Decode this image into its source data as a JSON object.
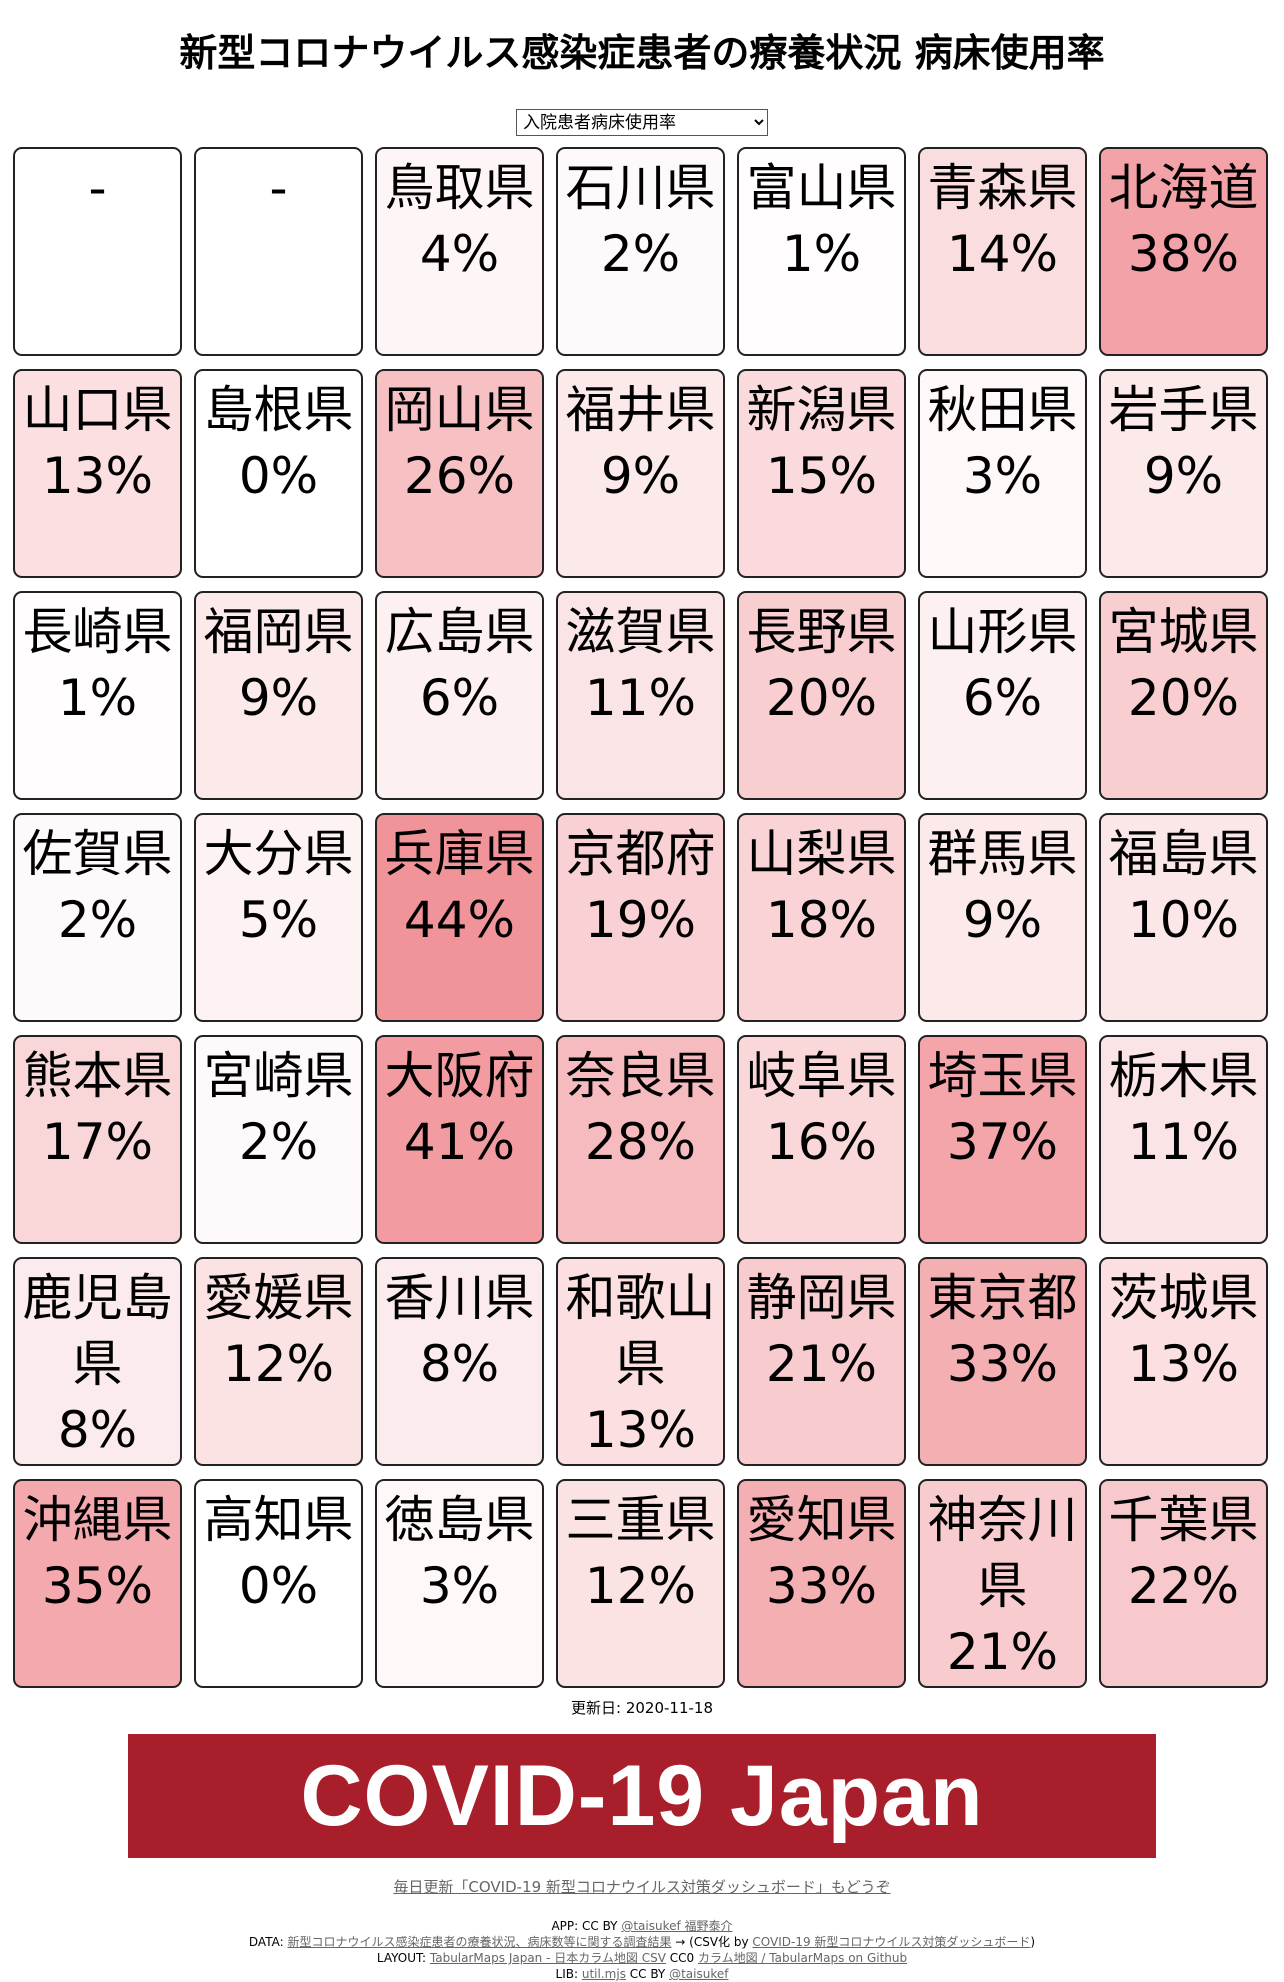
{
  "title": "新型コロナウイルス感染症患者の療養状況 病床使用率",
  "select": {
    "value": "入院患者病床使用率"
  },
  "colors": {
    "border": "#222222",
    "banner_bg": "#a81e2a",
    "banner_text": "#ffffff",
    "heat_base": "#e53c46"
  },
  "grid": [
    {
      "name": "-",
      "value": ""
    },
    {
      "name": "-",
      "value": ""
    },
    {
      "name": "鳥取県",
      "value": "4%",
      "rate": 4
    },
    {
      "name": "石川県",
      "value": "2%",
      "rate": 2
    },
    {
      "name": "富山県",
      "value": "1%",
      "rate": 1
    },
    {
      "name": "青森県",
      "value": "14%",
      "rate": 14
    },
    {
      "name": "北海道",
      "value": "38%",
      "rate": 38
    },
    {
      "name": "山口県",
      "value": "13%",
      "rate": 13
    },
    {
      "name": "島根県",
      "value": "0%",
      "rate": 0
    },
    {
      "name": "岡山県",
      "value": "26%",
      "rate": 26
    },
    {
      "name": "福井県",
      "value": "9%",
      "rate": 9
    },
    {
      "name": "新潟県",
      "value": "15%",
      "rate": 15
    },
    {
      "name": "秋田県",
      "value": "3%",
      "rate": 3
    },
    {
      "name": "岩手県",
      "value": "9%",
      "rate": 9
    },
    {
      "name": "長崎県",
      "value": "1%",
      "rate": 1
    },
    {
      "name": "福岡県",
      "value": "9%",
      "rate": 9
    },
    {
      "name": "広島県",
      "value": "6%",
      "rate": 6
    },
    {
      "name": "滋賀県",
      "value": "11%",
      "rate": 11
    },
    {
      "name": "長野県",
      "value": "20%",
      "rate": 20
    },
    {
      "name": "山形県",
      "value": "6%",
      "rate": 6
    },
    {
      "name": "宮城県",
      "value": "20%",
      "rate": 20
    },
    {
      "name": "佐賀県",
      "value": "2%",
      "rate": 2
    },
    {
      "name": "大分県",
      "value": "5%",
      "rate": 5
    },
    {
      "name": "兵庫県",
      "value": "44%",
      "rate": 44
    },
    {
      "name": "京都府",
      "value": "19%",
      "rate": 19
    },
    {
      "name": "山梨県",
      "value": "18%",
      "rate": 18
    },
    {
      "name": "群馬県",
      "value": "9%",
      "rate": 9
    },
    {
      "name": "福島県",
      "value": "10%",
      "rate": 10
    },
    {
      "name": "熊本県",
      "value": "17%",
      "rate": 17
    },
    {
      "name": "宮崎県",
      "value": "2%",
      "rate": 2
    },
    {
      "name": "大阪府",
      "value": "41%",
      "rate": 41
    },
    {
      "name": "奈良県",
      "value": "28%",
      "rate": 28
    },
    {
      "name": "岐阜県",
      "value": "16%",
      "rate": 16
    },
    {
      "name": "埼玉県",
      "value": "37%",
      "rate": 37
    },
    {
      "name": "栃木県",
      "value": "11%",
      "rate": 11
    },
    {
      "name": "鹿児島県",
      "value": "8%",
      "rate": 8
    },
    {
      "name": "愛媛県",
      "value": "12%",
      "rate": 12
    },
    {
      "name": "香川県",
      "value": "8%",
      "rate": 8
    },
    {
      "name": "和歌山県",
      "value": "13%",
      "rate": 13
    },
    {
      "name": "静岡県",
      "value": "21%",
      "rate": 21
    },
    {
      "name": "東京都",
      "value": "33%",
      "rate": 33
    },
    {
      "name": "茨城県",
      "value": "13%",
      "rate": 13
    },
    {
      "name": "沖縄県",
      "value": "35%",
      "rate": 35
    },
    {
      "name": "高知県",
      "value": "0%",
      "rate": 0
    },
    {
      "name": "徳島県",
      "value": "3%",
      "rate": 3
    },
    {
      "name": "三重県",
      "value": "12%",
      "rate": 12
    },
    {
      "name": "愛知県",
      "value": "33%",
      "rate": 33
    },
    {
      "name": "神奈川県",
      "value": "21%",
      "rate": 21
    },
    {
      "name": "千葉県",
      "value": "22%",
      "rate": 22
    }
  ],
  "updated": "更新日: 2020-11-18",
  "banner": "COVID-19 Japan",
  "promo_link": "毎日更新「COVID-19 新型コロナウイルス対策ダッシュボード」もどうぞ",
  "credits": {
    "app_prefix": "APP: CC BY ",
    "app_link": "@taisukef 福野泰介",
    "data_prefix": "DATA: ",
    "data_link": "新型コロナウイルス感染症患者の療養状況、病床数等に関する調査結果",
    "data_middle": " → (CSV化 by ",
    "data_link2": "COVID-19 新型コロナウイルス対策ダッシュボード",
    "data_suffix": ")",
    "layout_prefix": "LAYOUT: ",
    "layout_link": "TabularMaps Japan - 日本カラム地図 CSV",
    "layout_middle": " CC0 ",
    "layout_link2": "カラム地図 / TabularMaps on Github",
    "lib_prefix": "LIB: ",
    "lib_link": "util.mjs",
    "lib_middle": " CC BY ",
    "lib_link2": "@taisukef"
  }
}
